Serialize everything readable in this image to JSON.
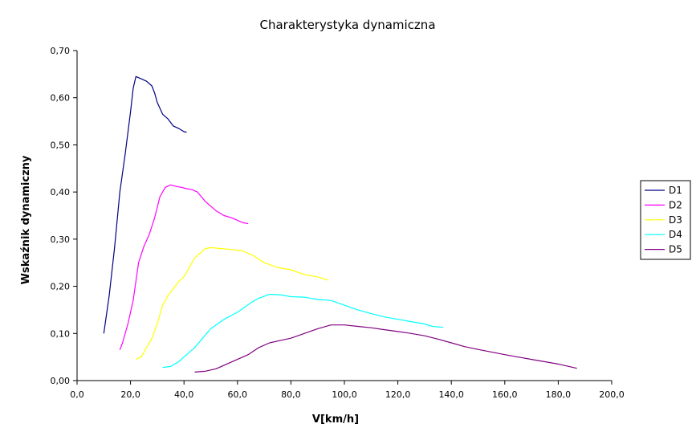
{
  "chart_data": {
    "type": "line",
    "title": "Charakterystyka dynamiczna",
    "xlabel": "V[km/h]",
    "ylabel": "Wskaźnik dynamiczny",
    "xlim": [
      0,
      200
    ],
    "ylim": [
      0,
      0.7
    ],
    "xticks": [
      "0,0",
      "20,0",
      "40,0",
      "60,0",
      "80,0",
      "100,0",
      "120,0",
      "140,0",
      "160,0",
      "180,0",
      "200,0"
    ],
    "yticks": [
      "0,00",
      "0,10",
      "0,20",
      "0,30",
      "0,40",
      "0,50",
      "0,60",
      "0,70"
    ],
    "grid": false,
    "legend": "right",
    "series": [
      {
        "name": "D1",
        "color": "#000080",
        "x": [
          10,
          12,
          14,
          16,
          18,
          20,
          21,
          22,
          24,
          26,
          28,
          29,
          30,
          32,
          34,
          36,
          38,
          40,
          41
        ],
        "y": [
          0.1,
          0.18,
          0.28,
          0.4,
          0.48,
          0.57,
          0.62,
          0.645,
          0.64,
          0.635,
          0.625,
          0.61,
          0.59,
          0.565,
          0.555,
          0.54,
          0.535,
          0.528,
          0.527
        ]
      },
      {
        "name": "D2",
        "color": "#ff00ff",
        "x": [
          16,
          17,
          19,
          21,
          23,
          25,
          27,
          29,
          31,
          33,
          35,
          37,
          39,
          41,
          43,
          45,
          48,
          50,
          52,
          55,
          58,
          60,
          62,
          64
        ],
        "y": [
          0.065,
          0.08,
          0.12,
          0.17,
          0.25,
          0.285,
          0.31,
          0.345,
          0.39,
          0.41,
          0.415,
          0.412,
          0.41,
          0.407,
          0.405,
          0.4,
          0.38,
          0.37,
          0.36,
          0.35,
          0.345,
          0.34,
          0.335,
          0.333
        ]
      },
      {
        "name": "D3",
        "color": "#ffff00",
        "x": [
          22,
          24,
          26,
          28,
          30,
          32,
          34,
          36,
          38,
          40,
          42,
          44,
          46,
          48,
          50,
          54,
          58,
          62,
          66,
          70,
          75,
          80,
          85,
          90,
          94
        ],
        "y": [
          0.045,
          0.05,
          0.07,
          0.09,
          0.12,
          0.16,
          0.18,
          0.195,
          0.21,
          0.22,
          0.24,
          0.26,
          0.27,
          0.28,
          0.282,
          0.28,
          0.278,
          0.275,
          0.265,
          0.25,
          0.24,
          0.235,
          0.225,
          0.22,
          0.213
        ]
      },
      {
        "name": "D4",
        "color": "#00ffff",
        "x": [
          32,
          35,
          38,
          41,
          44,
          47,
          50,
          55,
          60,
          65,
          68,
          72,
          76,
          80,
          85,
          90,
          95,
          100,
          105,
          110,
          115,
          120,
          125,
          130,
          133,
          137
        ],
        "y": [
          0.028,
          0.03,
          0.04,
          0.055,
          0.07,
          0.09,
          0.11,
          0.13,
          0.145,
          0.165,
          0.175,
          0.183,
          0.182,
          0.178,
          0.177,
          0.172,
          0.17,
          0.16,
          0.15,
          0.142,
          0.135,
          0.13,
          0.125,
          0.12,
          0.115,
          0.113
        ]
      },
      {
        "name": "D5",
        "color": "#800080",
        "x": [
          44,
          48,
          52,
          56,
          60,
          64,
          68,
          72,
          76,
          80,
          85,
          90,
          95,
          100,
          105,
          110,
          115,
          120,
          125,
          130,
          135,
          140,
          145,
          150,
          160,
          170,
          180,
          187
        ],
        "y": [
          0.018,
          0.02,
          0.025,
          0.035,
          0.045,
          0.055,
          0.07,
          0.08,
          0.085,
          0.09,
          0.1,
          0.11,
          0.118,
          0.118,
          0.115,
          0.112,
          0.108,
          0.104,
          0.1,
          0.095,
          0.088,
          0.08,
          0.072,
          0.066,
          0.055,
          0.045,
          0.035,
          0.026
        ]
      }
    ]
  }
}
